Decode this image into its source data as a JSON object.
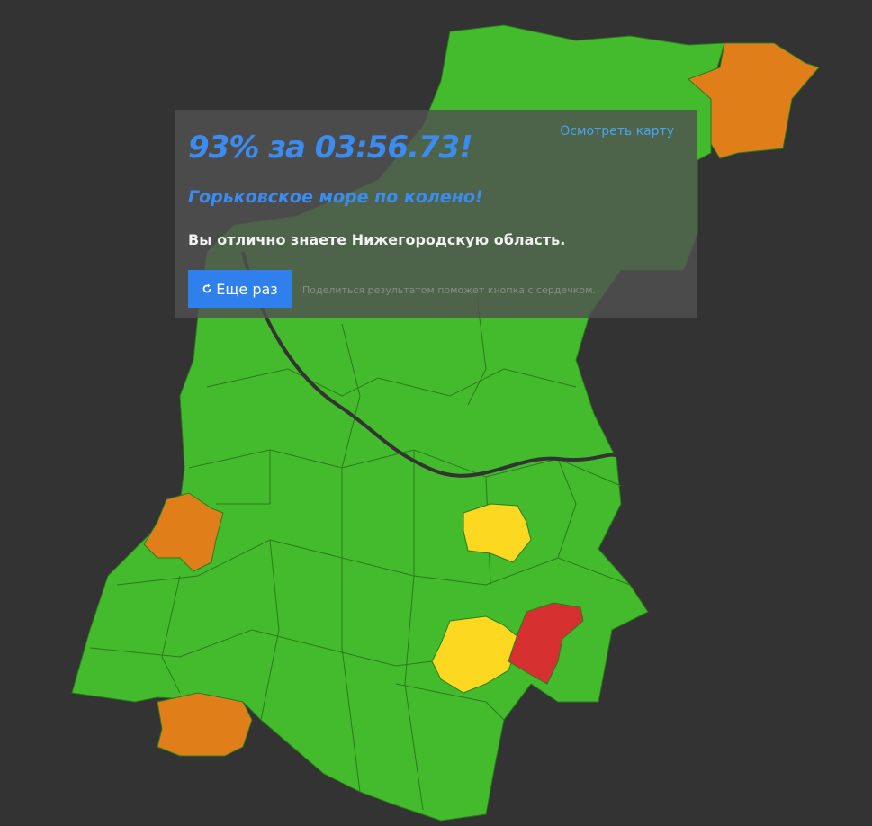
{
  "result": {
    "score": "93% за 03:56.73!",
    "slogan": "Горьковское море по колено!",
    "message": "Вы отлично знаете Нижегородскую область.",
    "retry_button": "Еще раз",
    "hint": "Поделиться результатом поможет кнопка с сердечком.",
    "view_map_link": "Осмотреть карту"
  }
}
